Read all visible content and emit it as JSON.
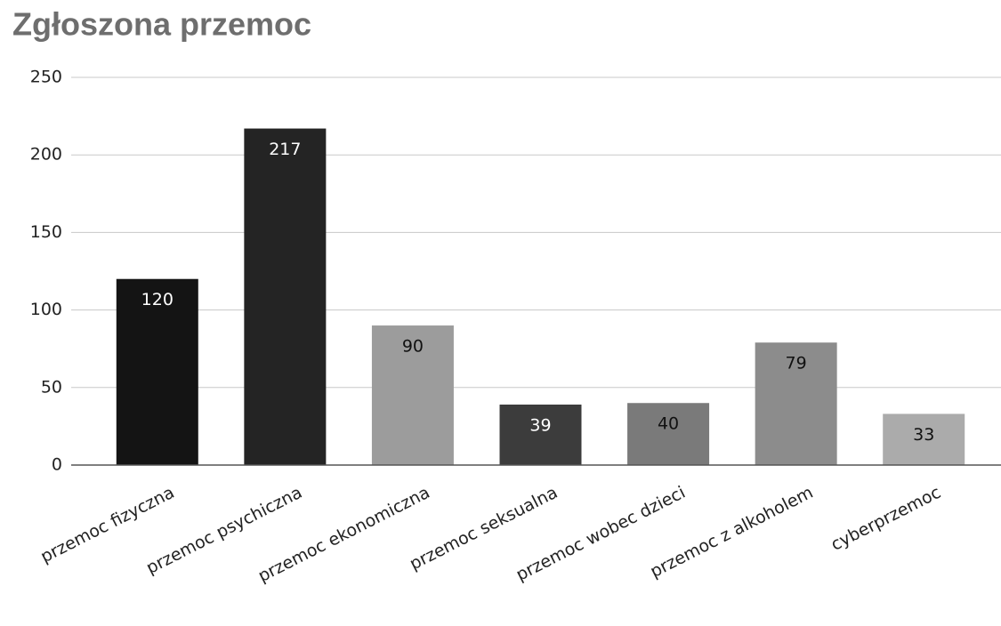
{
  "chart_data": {
    "type": "bar",
    "title": "Zgłoszona przemoc",
    "categories": [
      "przemoc fizyczna",
      "przemoc psychiczna",
      "przemoc ekonomiczna",
      "przemoc seksualna",
      "przemoc wobec dzieci",
      "przemoc z alkoholem",
      "cyberprzemoc"
    ],
    "values": [
      120,
      217,
      90,
      39,
      40,
      79,
      33
    ],
    "colors": [
      "#141414",
      "#242424",
      "#9c9c9c",
      "#3c3c3c",
      "#7a7a7a",
      "#8c8c8c",
      "#ababab"
    ],
    "ylim": [
      0,
      250
    ],
    "yticks": [
      0,
      50,
      100,
      150,
      200,
      250
    ],
    "grid": true
  }
}
